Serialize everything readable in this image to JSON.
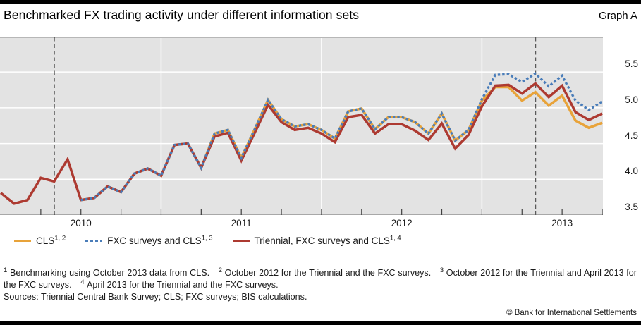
{
  "page": {
    "title": "Benchmarked FX trading activity under different information sets",
    "graph_label": "Graph A",
    "footnotes": [
      {
        "sup": "1",
        "text": "Benchmarking using October 2013 data from CLS."
      },
      {
        "sup": "2",
        "text": "October 2012 for the Triennial and the FXC surveys."
      },
      {
        "sup": "3",
        "text": "October 2012 for the Triennial and April 2013 for the FXC surveys."
      },
      {
        "sup": "4",
        "text": "April 2013 for the Triennial and the FXC surveys."
      }
    ],
    "sources": "Sources: Triennial Central Bank Survey; CLS; FXC surveys; BIS calculations.",
    "copyright": "© Bank for International Settlements"
  },
  "chart_data": {
    "type": "line",
    "title": "Benchmarked FX trading activity under different information sets",
    "x_unit": "month",
    "x": [
      "2009-07",
      "2009-08",
      "2009-09",
      "2009-10",
      "2009-11",
      "2009-12",
      "2010-01",
      "2010-02",
      "2010-03",
      "2010-04",
      "2010-05",
      "2010-06",
      "2010-07",
      "2010-08",
      "2010-09",
      "2010-10",
      "2010-11",
      "2010-12",
      "2011-01",
      "2011-02",
      "2011-03",
      "2011-04",
      "2011-05",
      "2011-06",
      "2011-07",
      "2011-08",
      "2011-09",
      "2011-10",
      "2011-11",
      "2011-12",
      "2012-01",
      "2012-02",
      "2012-03",
      "2012-04",
      "2012-05",
      "2012-06",
      "2012-07",
      "2012-08",
      "2012-09",
      "2012-10",
      "2012-11",
      "2012-12",
      "2013-01",
      "2013-02",
      "2013-03",
      "2013-04"
    ],
    "series": [
      {
        "name": "CLS",
        "sup": "1, 2",
        "color": "#e8a33a",
        "style": "solid",
        "values": [
          null,
          null,
          null,
          null,
          null,
          null,
          3.71,
          3.74,
          3.9,
          3.82,
          4.08,
          4.15,
          4.05,
          4.48,
          4.5,
          4.16,
          4.64,
          4.69,
          4.3,
          4.7,
          5.11,
          4.84,
          4.74,
          4.77,
          4.69,
          4.57,
          4.95,
          4.99,
          4.7,
          4.87,
          4.87,
          4.8,
          4.64,
          4.92,
          4.54,
          4.69,
          5.1,
          5.29,
          5.29,
          5.1,
          5.22,
          5.03,
          5.17,
          4.82,
          4.72,
          4.79
        ]
      },
      {
        "name": "FXC surveys and CLS",
        "sup": "1, 3",
        "color": "#4a7db9",
        "style": "dotted",
        "values": [
          null,
          null,
          null,
          null,
          null,
          null,
          3.71,
          3.74,
          3.9,
          3.82,
          4.08,
          4.15,
          4.05,
          4.48,
          4.5,
          4.16,
          4.64,
          4.69,
          4.3,
          4.7,
          5.11,
          4.84,
          4.74,
          4.77,
          4.69,
          4.57,
          4.95,
          4.99,
          4.7,
          4.87,
          4.87,
          4.8,
          4.64,
          4.92,
          4.54,
          4.69,
          5.12,
          5.46,
          5.47,
          5.36,
          5.48,
          5.3,
          5.45,
          5.1,
          4.97,
          5.09
        ]
      },
      {
        "name": "Triennial, FXC surveys and CLS",
        "sup": "1, 4",
        "color": "#ad3a31",
        "style": "solid",
        "values": [
          3.81,
          3.66,
          3.71,
          4.02,
          3.97,
          4.28,
          3.71,
          3.74,
          3.9,
          3.82,
          4.08,
          4.15,
          4.05,
          4.48,
          4.5,
          4.16,
          4.6,
          4.65,
          4.26,
          4.65,
          5.04,
          4.8,
          4.69,
          4.72,
          4.64,
          4.52,
          4.87,
          4.9,
          4.64,
          4.77,
          4.77,
          4.68,
          4.55,
          4.78,
          4.43,
          4.62,
          5.02,
          5.31,
          5.32,
          5.2,
          5.34,
          5.15,
          5.31,
          4.94,
          4.83,
          4.92
        ]
      }
    ],
    "ylim": [
      3.5,
      5.985
    ],
    "yticks": [
      3.5,
      4.0,
      4.5,
      5.0,
      5.5
    ],
    "ytick_labels": [
      "3.5",
      "4.0",
      "4.5",
      "5.0",
      "5.5"
    ],
    "year_labels": [
      {
        "month": "2010-01",
        "label": "2010"
      },
      {
        "month": "2011-01",
        "label": "2011"
      },
      {
        "month": "2012-01",
        "label": "2012"
      },
      {
        "month": "2013-01",
        "label": "2013"
      }
    ],
    "xticks_every_months": 3,
    "vgrid_months": [
      "2010-07",
      "2011-07",
      "2012-07"
    ],
    "vlines": [
      {
        "month": "2009-11",
        "color": "#1a1a1a",
        "width": 1.4
      },
      {
        "month": "2012-11",
        "color": "#595959",
        "width": 2.0
      }
    ],
    "grid": true,
    "legend_position": "bottom",
    "plot_bg": "#e3e3e3",
    "grid_color": "#ffffff"
  }
}
